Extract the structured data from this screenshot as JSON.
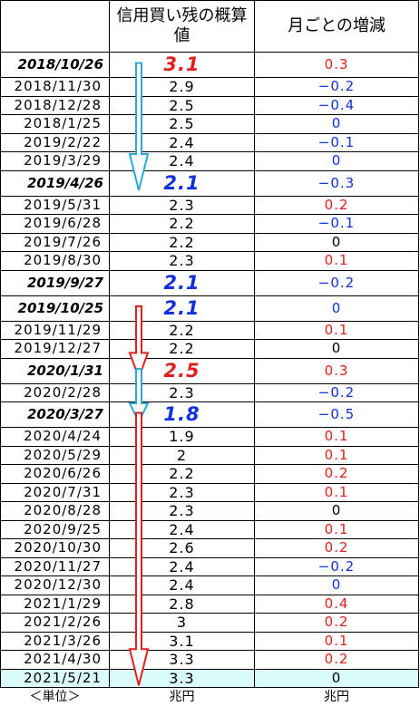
{
  "header": {
    "col2": "信用買い残の概算値",
    "col3": "月ごとの増減"
  },
  "rows": [
    {
      "date": "2018/10/26",
      "value": "3.1",
      "change": "0.3",
      "highlight": true,
      "value_color": "red",
      "change_color": "red"
    },
    {
      "date": "2018/11/30",
      "value": "2.9",
      "change": "−0.2",
      "highlight": false,
      "value_color": "black",
      "change_color": "blue"
    },
    {
      "date": "2018/12/28",
      "value": "2.5",
      "change": "−0.4",
      "highlight": false,
      "value_color": "black",
      "change_color": "blue"
    },
    {
      "date": "2018/1/25",
      "value": "2.5",
      "change": "0",
      "highlight": false,
      "value_color": "black",
      "change_color": "blue"
    },
    {
      "date": "2019/2/22",
      "value": "2.4",
      "change": "−0.1",
      "highlight": false,
      "value_color": "black",
      "change_color": "blue"
    },
    {
      "date": "2019/3/29",
      "value": "2.4",
      "change": "0",
      "highlight": false,
      "value_color": "black",
      "change_color": "blue"
    },
    {
      "date": "2019/4/26",
      "value": "2.1",
      "change": "−0.3",
      "highlight": true,
      "value_color": "blue",
      "change_color": "blue"
    },
    {
      "date": "2019/5/31",
      "value": "2.3",
      "change": "0.2",
      "highlight": false,
      "value_color": "black",
      "change_color": "red"
    },
    {
      "date": "2019/6/28",
      "value": "2.2",
      "change": "−0.1",
      "highlight": false,
      "value_color": "black",
      "change_color": "blue"
    },
    {
      "date": "2019/7/26",
      "value": "2.2",
      "change": "0",
      "highlight": false,
      "value_color": "black",
      "change_color": "black"
    },
    {
      "date": "2019/8/30",
      "value": "2.3",
      "change": "0.1",
      "highlight": false,
      "value_color": "black",
      "change_color": "red"
    },
    {
      "date": "2019/9/27",
      "value": "2.1",
      "change": "−0.2",
      "highlight": true,
      "value_color": "blue",
      "change_color": "blue"
    },
    {
      "date": "2019/10/25",
      "value": "2.1",
      "change": "0",
      "highlight": true,
      "value_color": "blue",
      "change_color": "blue"
    },
    {
      "date": "2019/11/29",
      "value": "2.2",
      "change": "0.1",
      "highlight": false,
      "value_color": "black",
      "change_color": "red"
    },
    {
      "date": "2019/12/27",
      "value": "2.2",
      "change": "0",
      "highlight": false,
      "value_color": "black",
      "change_color": "black"
    },
    {
      "date": "2020/1/31",
      "value": "2.5",
      "change": "0.3",
      "highlight": true,
      "value_color": "red",
      "change_color": "red"
    },
    {
      "date": "2020/2/28",
      "value": "2.3",
      "change": "−0.2",
      "highlight": false,
      "value_color": "black",
      "change_color": "blue"
    },
    {
      "date": "2020/3/27",
      "value": "1.8",
      "change": "−0.5",
      "highlight": true,
      "value_color": "blue",
      "change_color": "blue"
    },
    {
      "date": "2020/4/24",
      "value": "1.9",
      "change": "0.1",
      "highlight": false,
      "value_color": "black",
      "change_color": "red"
    },
    {
      "date": "2020/5/29",
      "value": "2",
      "change": "0.1",
      "highlight": false,
      "value_color": "black",
      "change_color": "red"
    },
    {
      "date": "2020/6/26",
      "value": "2.2",
      "change": "0.2",
      "highlight": false,
      "value_color": "black",
      "change_color": "red"
    },
    {
      "date": "2020/7/31",
      "value": "2.3",
      "change": "0.1",
      "highlight": false,
      "value_color": "black",
      "change_color": "red"
    },
    {
      "date": "2020/8/28",
      "value": "2.3",
      "change": "0",
      "highlight": false,
      "value_color": "black",
      "change_color": "black"
    },
    {
      "date": "2020/9/25",
      "value": "2.4",
      "change": "0.1",
      "highlight": false,
      "value_color": "black",
      "change_color": "red"
    },
    {
      "date": "2020/10/30",
      "value": "2.6",
      "change": "0.2",
      "highlight": false,
      "value_color": "black",
      "change_color": "red"
    },
    {
      "date": "2020/11/27",
      "value": "2.4",
      "change": "−0.2",
      "highlight": false,
      "value_color": "black",
      "change_color": "blue"
    },
    {
      "date": "2020/12/30",
      "value": "2.4",
      "change": "0",
      "highlight": false,
      "value_color": "black",
      "change_color": "blue"
    },
    {
      "date": "2021/1/29",
      "value": "2.8",
      "change": "0.4",
      "highlight": false,
      "value_color": "black",
      "change_color": "red"
    },
    {
      "date": "2021/2/26",
      "value": "3",
      "change": "0.2",
      "highlight": false,
      "value_color": "black",
      "change_color": "red"
    },
    {
      "date": "2021/3/26",
      "value": "3.1",
      "change": "0.1",
      "highlight": false,
      "value_color": "black",
      "change_color": "red"
    },
    {
      "date": "2021/4/30",
      "value": "3.3",
      "change": "0.2",
      "highlight": false,
      "value_color": "black",
      "change_color": "red"
    },
    {
      "date": "2021/5/21",
      "value": "3.3",
      "change": "0",
      "highlight": false,
      "value_color": "black",
      "change_color": "black"
    }
  ],
  "footer": {
    "unit_label": "＜単位＞",
    "col2_unit": "兆円",
    "col3_unit": "兆円"
  },
  "colors": {
    "red": "#e0201c",
    "blue": "#1030e0",
    "last_row_bg": "#d9fbfb",
    "down_arrow_blue": "#2aa8d8",
    "down_arrow_red": "#e0201c"
  }
}
